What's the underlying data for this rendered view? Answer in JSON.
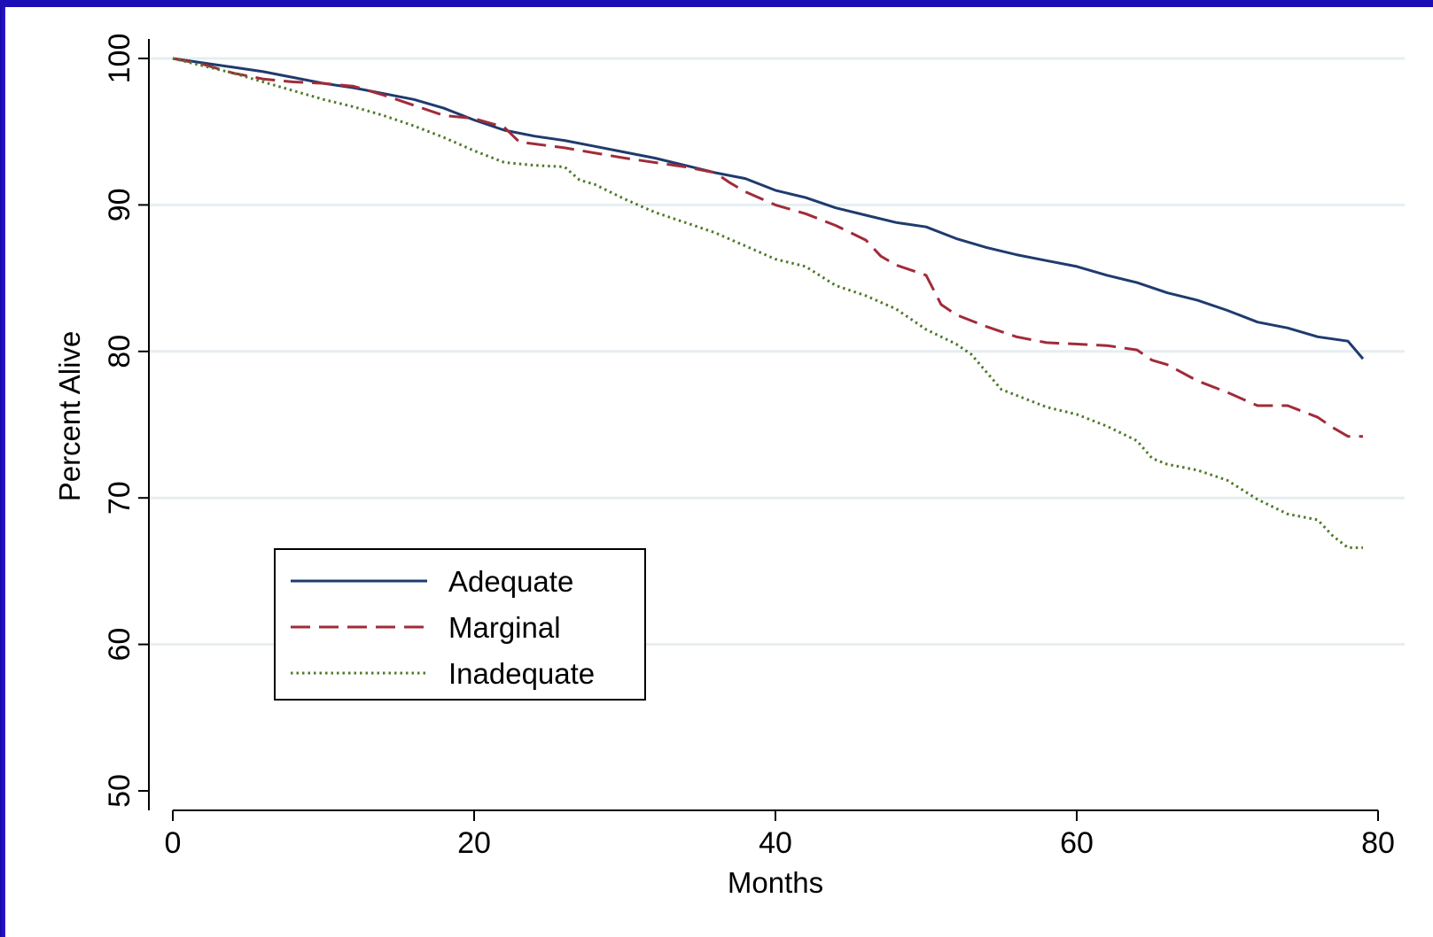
{
  "chart_data": {
    "type": "line",
    "title": "",
    "xlabel": "Months",
    "ylabel": "Percent Alive",
    "xlim": [
      0,
      80
    ],
    "ylim": [
      50,
      100
    ],
    "xticks": [
      0,
      20,
      40,
      60,
      80
    ],
    "yticks": [
      50,
      60,
      70,
      80,
      90,
      100
    ],
    "grid": true,
    "legend_position": "lower-left",
    "series": [
      {
        "name": "Adequate",
        "color": "#1f3b6e",
        "dash": "solid",
        "x": [
          0,
          2,
          4,
          6,
          8,
          10,
          12,
          14,
          16,
          18,
          20,
          22,
          24,
          26,
          28,
          30,
          32,
          34,
          36,
          38,
          40,
          42,
          44,
          46,
          48,
          50,
          52,
          54,
          56,
          58,
          60,
          62,
          64,
          66,
          68,
          70,
          72,
          74,
          76,
          78,
          79
        ],
        "values": [
          100,
          99.7,
          99.4,
          99.1,
          98.7,
          98.3,
          98.0,
          97.6,
          97.2,
          96.6,
          95.8,
          95.1,
          94.7,
          94.4,
          94.0,
          93.6,
          93.2,
          92.7,
          92.2,
          91.8,
          91.0,
          90.5,
          89.8,
          89.3,
          88.8,
          88.5,
          87.7,
          87.1,
          86.6,
          86.2,
          85.8,
          85.2,
          84.7,
          84.0,
          83.5,
          82.8,
          82.0,
          81.6,
          81.0,
          80.7,
          79.5
        ]
      },
      {
        "name": "Marginal",
        "color": "#a12b3a",
        "dash": "dashed",
        "x": [
          0,
          2,
          4,
          6,
          8,
          10,
          12,
          14,
          16,
          18,
          20,
          22,
          23,
          26,
          30,
          34,
          36,
          37,
          38,
          40,
          42,
          44,
          46,
          47,
          48,
          50,
          51,
          52,
          54,
          56,
          58,
          60,
          62,
          64,
          65,
          66,
          68,
          70,
          72,
          74,
          76,
          77,
          78,
          79
        ],
        "values": [
          100,
          99.6,
          99.0,
          98.6,
          98.4,
          98.3,
          98.1,
          97.5,
          96.8,
          96.1,
          95.9,
          95.3,
          94.3,
          93.9,
          93.2,
          92.6,
          92.2,
          91.5,
          90.9,
          90.0,
          89.4,
          88.6,
          87.6,
          86.5,
          85.9,
          85.2,
          83.2,
          82.5,
          81.7,
          81.0,
          80.6,
          80.5,
          80.4,
          80.1,
          79.4,
          79.1,
          78.0,
          77.2,
          76.3,
          76.3,
          75.5,
          74.8,
          74.2,
          74.2
        ]
      },
      {
        "name": "Inadequate",
        "color": "#4e7a2a",
        "dash": "dotted",
        "x": [
          0,
          2,
          4,
          6,
          8,
          10,
          12,
          14,
          16,
          18,
          20,
          22,
          24,
          26,
          27,
          28,
          30,
          32,
          34,
          36,
          38,
          40,
          42,
          44,
          46,
          48,
          50,
          52,
          53,
          54,
          55,
          56,
          58,
          60,
          62,
          64,
          65,
          66,
          68,
          70,
          72,
          74,
          76,
          77,
          78,
          79
        ],
        "values": [
          100,
          99.5,
          99.0,
          98.4,
          97.8,
          97.2,
          96.7,
          96.1,
          95.4,
          94.6,
          93.7,
          92.9,
          92.7,
          92.6,
          91.7,
          91.4,
          90.4,
          89.5,
          88.8,
          88.1,
          87.2,
          86.3,
          85.8,
          84.5,
          83.8,
          82.9,
          81.5,
          80.5,
          79.8,
          78.6,
          77.4,
          77.0,
          76.2,
          75.7,
          74.9,
          73.9,
          72.7,
          72.3,
          71.9,
          71.2,
          69.9,
          68.9,
          68.5,
          67.4,
          66.6,
          66.6
        ]
      }
    ]
  }
}
